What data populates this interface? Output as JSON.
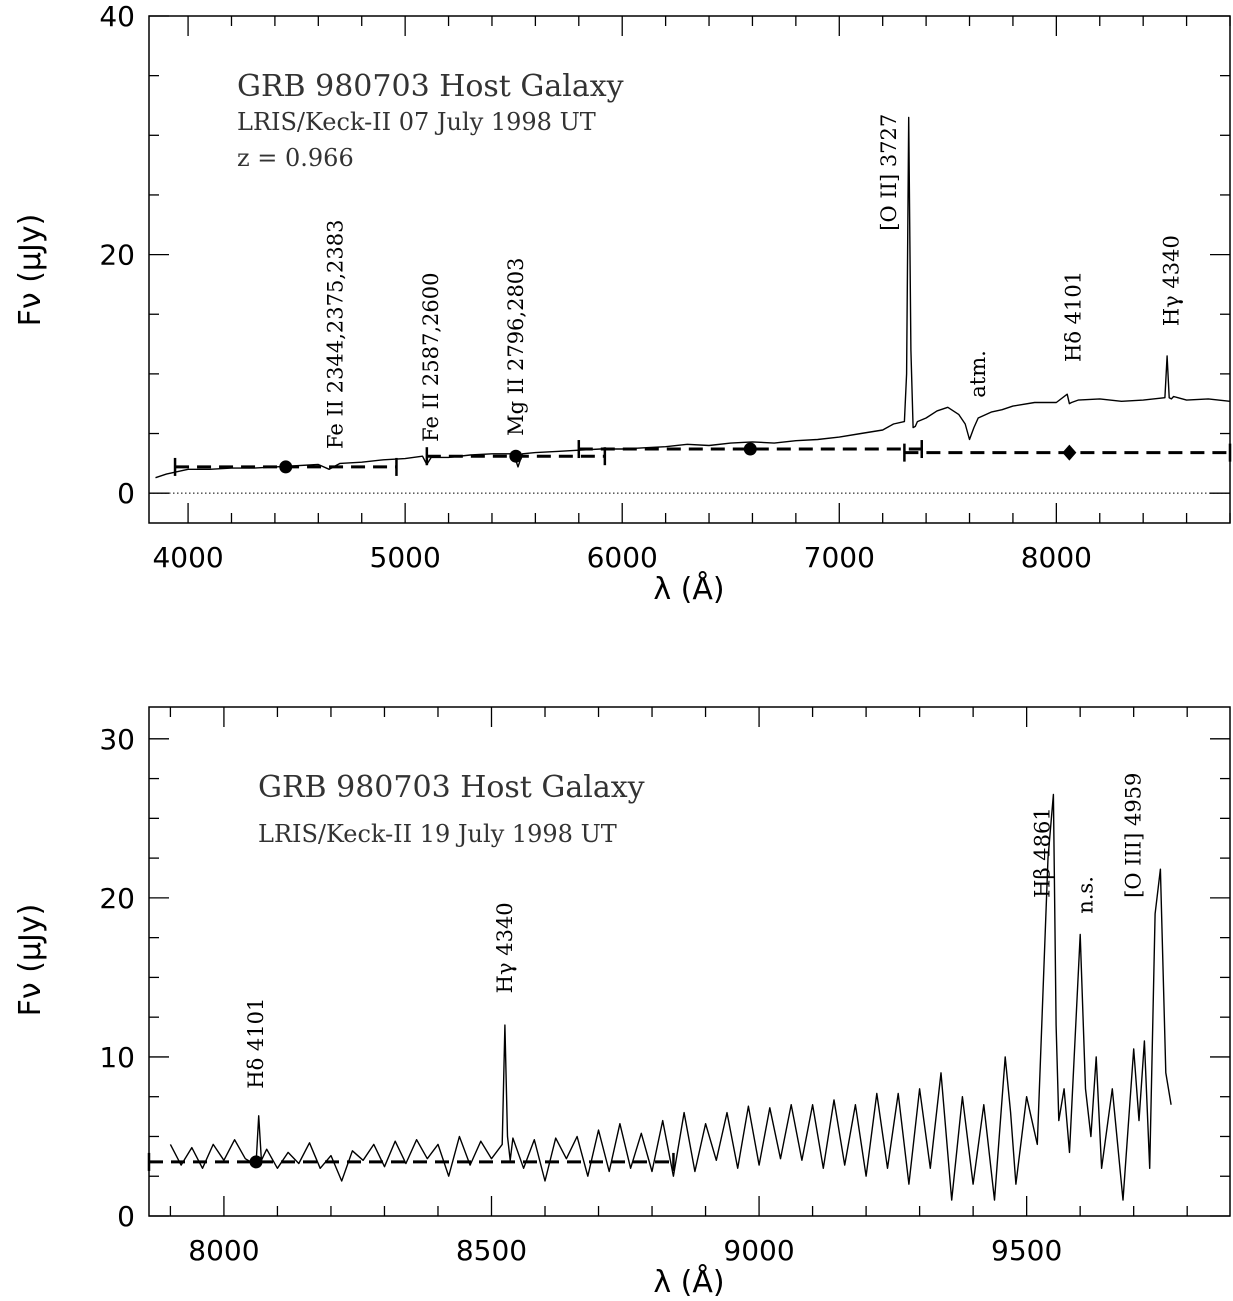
{
  "chart_data": [
    {
      "type": "line",
      "title": "GRB 980703 Host Galaxy",
      "subtitle": "LRIS/Keck-II 07 July 1998 UT",
      "redshift_label": "z = 0.966",
      "xlabel": "λ (Å)",
      "ylabel": "Fν (μJy)",
      "xlim": [
        3820,
        8800
      ],
      "ylim": [
        -2.5,
        40
      ],
      "xticks": [
        4000,
        5000,
        6000,
        7000,
        8000
      ],
      "yticks": [
        0,
        20,
        40
      ],
      "zero_line": true,
      "spectrum": {
        "x": [
          3850,
          3900,
          3950,
          4000,
          4100,
          4200,
          4300,
          4400,
          4500,
          4600,
          4650,
          4700,
          4800,
          4900,
          5000,
          5080,
          5100,
          5120,
          5200,
          5300,
          5400,
          5500,
          5520,
          5540,
          5600,
          5700,
          5800,
          5900,
          6000,
          6100,
          6200,
          6300,
          6400,
          6500,
          6600,
          6700,
          6800,
          6900,
          7000,
          7100,
          7200,
          7250,
          7300,
          7310,
          7320,
          7330,
          7340,
          7350,
          7360,
          7400,
          7450,
          7500,
          7550,
          7580,
          7600,
          7620,
          7640,
          7700,
          7750,
          7800,
          7900,
          8000,
          8050,
          8060,
          8070,
          8100,
          8200,
          8300,
          8400,
          8500,
          8510,
          8520,
          8530,
          8540,
          8560,
          8600,
          8700,
          8800
        ],
        "y": [
          1.3,
          1.6,
          1.8,
          2.0,
          2.0,
          2.1,
          2.1,
          2.2,
          2.3,
          2.4,
          2.0,
          2.5,
          2.6,
          2.8,
          2.9,
          3.1,
          2.4,
          3.0,
          3.0,
          3.2,
          3.3,
          3.3,
          2.2,
          3.3,
          3.4,
          3.5,
          3.6,
          3.7,
          3.7,
          3.8,
          3.9,
          4.1,
          4.0,
          4.2,
          4.3,
          4.2,
          4.4,
          4.5,
          4.7,
          5.0,
          5.3,
          5.8,
          6.0,
          10.0,
          31.5,
          12.0,
          5.5,
          5.6,
          6.0,
          6.3,
          6.9,
          7.2,
          6.6,
          5.8,
          4.5,
          5.5,
          6.3,
          6.8,
          7.0,
          7.3,
          7.6,
          7.6,
          8.3,
          7.5,
          7.6,
          7.8,
          7.9,
          7.7,
          7.8,
          8.0,
          11.5,
          8.0,
          7.9,
          8.1,
          8.0,
          7.8,
          7.9,
          7.7
        ]
      },
      "photometry": [
        {
          "x": 4450,
          "y": 2.2,
          "x_err": [
            3940,
            4960
          ],
          "marker": "circle"
        },
        {
          "x": 5510,
          "y": 3.1,
          "x_err": [
            5100,
            5920
          ],
          "marker": "circle"
        },
        {
          "x": 6590,
          "y": 3.7,
          "x_err": [
            5800,
            7380
          ],
          "marker": "circle"
        },
        {
          "x": 8060,
          "y": 3.4,
          "x_err": [
            7300,
            8800
          ],
          "marker": "diamond"
        }
      ],
      "line_labels": [
        {
          "text": "Fe II 2344,2375,2383",
          "x": 4680,
          "y_base": 3.7
        },
        {
          "text": "Fe II 2587,2600",
          "x": 5120,
          "y_base": 4.3
        },
        {
          "text": "Mg II 2796,2803",
          "x": 5510,
          "y_base": 4.8
        },
        {
          "text": "[O II] 3727",
          "x": 7230,
          "y_base": 22.0
        },
        {
          "text": "atm.",
          "x": 7640,
          "y_base": 8.0
        },
        {
          "text": "Hδ 4101",
          "x": 8080,
          "y_base": 11.0
        },
        {
          "text": "Hγ 4340",
          "x": 8530,
          "y_base": 14.0
        }
      ]
    },
    {
      "type": "line",
      "title": "GRB 980703 Host Galaxy",
      "subtitle": "LRIS/Keck-II 19 July 1998 UT",
      "xlabel": "λ (Å)",
      "ylabel": "Fν (μJy)",
      "xlim": [
        7860,
        9880
      ],
      "ylim": [
        0,
        32
      ],
      "xticks": [
        8000,
        8500,
        9000,
        9500
      ],
      "yticks": [
        0,
        10,
        20,
        30
      ],
      "spectrum": {
        "x": [
          7900,
          7920,
          7940,
          7960,
          7980,
          8000,
          8020,
          8040,
          8060,
          8065,
          8070,
          8080,
          8100,
          8120,
          8140,
          8160,
          8180,
          8200,
          8220,
          8240,
          8260,
          8280,
          8300,
          8320,
          8340,
          8360,
          8380,
          8400,
          8420,
          8440,
          8460,
          8480,
          8500,
          8520,
          8525,
          8530,
          8535,
          8540,
          8560,
          8580,
          8600,
          8620,
          8640,
          8660,
          8680,
          8700,
          8720,
          8740,
          8760,
          8780,
          8800,
          8820,
          8840,
          8860,
          8880,
          8900,
          8920,
          8940,
          8960,
          8980,
          9000,
          9020,
          9040,
          9060,
          9080,
          9100,
          9120,
          9140,
          9160,
          9180,
          9200,
          9220,
          9240,
          9260,
          9280,
          9300,
          9320,
          9340,
          9360,
          9380,
          9400,
          9420,
          9440,
          9460,
          9470,
          9480,
          9500,
          9520,
          9540,
          9550,
          9555,
          9560,
          9570,
          9580,
          9600,
          9610,
          9620,
          9630,
          9640,
          9660,
          9680,
          9700,
          9710,
          9720,
          9730,
          9740,
          9750,
          9760,
          9770
        ],
        "y": [
          4.5,
          3.2,
          4.3,
          3.0,
          4.5,
          3.5,
          4.8,
          3.6,
          3.2,
          6.3,
          3.5,
          4.2,
          3.0,
          4.0,
          3.3,
          4.6,
          3.0,
          3.8,
          2.2,
          4.1,
          3.5,
          4.5,
          3.1,
          4.7,
          3.3,
          4.8,
          3.6,
          4.5,
          2.5,
          5.0,
          3.2,
          4.7,
          3.6,
          4.5,
          12.0,
          5.0,
          3.5,
          4.9,
          3.0,
          4.8,
          2.2,
          4.9,
          3.6,
          5.0,
          2.5,
          5.4,
          2.8,
          5.8,
          3.0,
          5.2,
          2.8,
          6.0,
          2.5,
          6.5,
          2.8,
          5.8,
          3.5,
          6.5,
          3.0,
          6.9,
          3.2,
          6.8,
          3.6,
          7.0,
          3.5,
          7.0,
          3.0,
          7.3,
          3.2,
          7.0,
          2.5,
          7.7,
          3.0,
          7.7,
          2.0,
          8.0,
          3.0,
          9.0,
          1.0,
          7.5,
          2.0,
          7.0,
          1.0,
          10.0,
          6.5,
          2.0,
          7.5,
          4.5,
          22.5,
          26.5,
          12.0,
          6.0,
          8.0,
          4.0,
          17.7,
          8.0,
          5.0,
          10.0,
          3.0,
          8.0,
          1.0,
          10.5,
          6.0,
          11.0,
          3.0,
          19.0,
          21.8,
          9.0,
          7.0
        ]
      },
      "photometry": [
        {
          "x": 8060,
          "y": 3.4,
          "x_err": [
            7860,
            8840
          ],
          "marker": "circle"
        }
      ],
      "line_labels": [
        {
          "text": "Hδ 4101",
          "x": 8060,
          "y_base": 8.0
        },
        {
          "text": "Hγ 4340",
          "x": 8525,
          "y_base": 14.0
        },
        {
          "text": "Hβ 4861",
          "x": 9530,
          "y_base": 20.0
        },
        {
          "text": "n.s.",
          "x": 9610,
          "y_base": 19.0
        },
        {
          "text": "[O III] 4959",
          "x": 9700,
          "y_base": 20.0
        }
      ]
    }
  ]
}
